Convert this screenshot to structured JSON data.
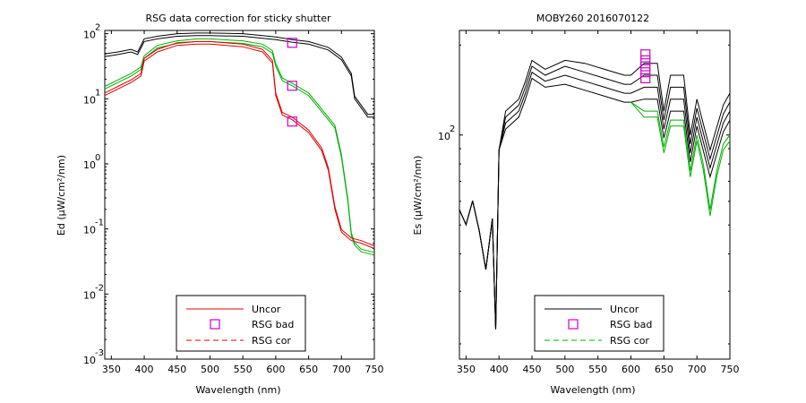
{
  "chart_data": [
    {
      "type": "line",
      "title": "RSG data correction for sticky shutter",
      "xlabel": "Wavelength (nm)",
      "ylabel": "Ed (µW/cm²/nm)",
      "xlim": [
        340,
        750
      ],
      "ylim_log10": [
        -3,
        2.05
      ],
      "yscale": "log",
      "xticks": [
        350,
        400,
        450,
        500,
        550,
        600,
        650,
        700,
        750
      ],
      "yticks": [
        {
          "value": 2,
          "base": "10",
          "exp": "2"
        },
        {
          "value": 1,
          "base": "10",
          "exp": "1"
        },
        {
          "value": 0,
          "base": "10",
          "exp": "0"
        },
        {
          "value": -1,
          "base": "10",
          "exp": "-1"
        },
        {
          "value": -2,
          "base": "10",
          "exp": "-2"
        },
        {
          "value": -3,
          "base": "10",
          "exp": "-3"
        }
      ],
      "legend": {
        "position": "bottom-center",
        "entries": [
          {
            "label": "Uncor",
            "style": "line",
            "color": "#e00000"
          },
          {
            "label": "RSG bad",
            "style": "square",
            "color": "#cc00cc"
          },
          {
            "label": "RSG cor",
            "style": "dashed",
            "color": "#e00000"
          }
        ]
      },
      "series": [
        {
          "color": "#000000",
          "x": [
            340,
            360,
            380,
            390,
            395,
            400,
            420,
            450,
            480,
            500,
            550,
            580,
            600,
            625,
            650,
            680,
            700,
            715,
            720,
            740,
            750
          ],
          "y_log10": [
            1.65,
            1.68,
            1.72,
            1.68,
            1.78,
            1.88,
            1.92,
            1.96,
            1.97,
            1.97,
            1.96,
            1.93,
            1.91,
            1.87,
            1.84,
            1.75,
            1.6,
            1.35,
            1.0,
            0.72,
            0.72
          ]
        },
        {
          "color": "#000000",
          "x": [
            340,
            360,
            380,
            390,
            395,
            400,
            420,
            450,
            480,
            500,
            550,
            580,
            600,
            625,
            650,
            680,
            700,
            715,
            720,
            740,
            750
          ],
          "y_log10": [
            1.69,
            1.72,
            1.76,
            1.72,
            1.82,
            1.92,
            1.96,
            2.0,
            2.01,
            2.01,
            2.0,
            1.97,
            1.95,
            1.91,
            1.88,
            1.79,
            1.64,
            1.39,
            1.04,
            0.76,
            0.76
          ]
        },
        {
          "color": "#00b000",
          "x": [
            340,
            360,
            380,
            395,
            400,
            420,
            450,
            480,
            500,
            550,
            580,
            595,
            600,
            610,
            625,
            650,
            670,
            690,
            700,
            710,
            715,
            720,
            730,
            750
          ],
          "y_log10": [
            1.15,
            1.25,
            1.35,
            1.45,
            1.62,
            1.78,
            1.85,
            1.88,
            1.88,
            1.85,
            1.8,
            1.7,
            1.5,
            1.28,
            1.2,
            1.05,
            0.8,
            0.55,
            0.1,
            -0.6,
            -1.1,
            -1.25,
            -1.35,
            -1.4
          ]
        },
        {
          "color": "#00b000",
          "x": [
            340,
            360,
            380,
            395,
            400,
            420,
            450,
            480,
            500,
            550,
            580,
            595,
            600,
            610,
            625,
            650,
            670,
            690,
            700,
            710,
            715,
            720,
            730,
            750
          ],
          "y_log10": [
            1.19,
            1.29,
            1.39,
            1.49,
            1.66,
            1.82,
            1.89,
            1.92,
            1.92,
            1.89,
            1.84,
            1.74,
            1.54,
            1.32,
            1.24,
            1.09,
            0.84,
            0.59,
            0.14,
            -0.56,
            -1.06,
            -1.21,
            -1.31,
            -1.36
          ]
        },
        {
          "color": "#e00000",
          "x": [
            340,
            360,
            380,
            395,
            400,
            420,
            450,
            480,
            500,
            550,
            580,
            595,
            600,
            610,
            625,
            650,
            670,
            680,
            690,
            700,
            715,
            730,
            750
          ],
          "y_log10": [
            1.05,
            1.15,
            1.25,
            1.35,
            1.58,
            1.72,
            1.82,
            1.84,
            1.84,
            1.8,
            1.72,
            1.55,
            1.05,
            0.75,
            0.68,
            0.48,
            0.2,
            -0.1,
            -0.7,
            -1.05,
            -1.18,
            -1.22,
            -1.3
          ]
        },
        {
          "color": "#e00000",
          "x": [
            340,
            360,
            380,
            395,
            400,
            420,
            450,
            480,
            500,
            550,
            580,
            595,
            600,
            610,
            625,
            650,
            670,
            680,
            690,
            700,
            715,
            730,
            750
          ],
          "y_log10": [
            1.09,
            1.19,
            1.29,
            1.39,
            1.62,
            1.76,
            1.86,
            1.88,
            1.88,
            1.84,
            1.76,
            1.59,
            1.09,
            0.79,
            0.72,
            0.52,
            0.24,
            -0.06,
            -0.66,
            -1.01,
            -1.14,
            -1.18,
            -1.26
          ]
        }
      ],
      "markers": {
        "color": "#cc00cc",
        "x": [
          625,
          625,
          625
        ],
        "y_log10": [
          1.86,
          1.2,
          0.65
        ]
      }
    },
    {
      "type": "line",
      "title": "MOBY260  2016070122",
      "xlabel": "Wavelength (nm)",
      "ylabel": "Es (µW/cm²/nm)",
      "xlim": [
        340,
        750
      ],
      "ylim_log10": [
        1.25,
        2.35
      ],
      "yscale": "log",
      "xticks": [
        350,
        400,
        450,
        500,
        550,
        600,
        650,
        700,
        750
      ],
      "yticks": [
        {
          "value": 2,
          "base": "10",
          "exp": "2"
        }
      ],
      "legend": {
        "position": "bottom-center",
        "entries": [
          {
            "label": "Uncor",
            "style": "line",
            "color": "#000000"
          },
          {
            "label": "RSG bad",
            "style": "square",
            "color": "#cc00cc"
          },
          {
            "label": "RSG cor",
            "style": "dashed",
            "color": "#00b000"
          }
        ]
      },
      "series": [
        {
          "color": "#000000",
          "x": [
            340,
            350,
            360,
            370,
            380,
            390,
            395,
            400,
            410,
            430,
            440,
            450,
            470,
            500,
            530,
            560,
            590,
            600,
            620,
            640,
            650,
            660,
            680,
            690,
            700,
            720,
            740,
            750
          ],
          "y_log10": [
            1.75,
            1.7,
            1.78,
            1.68,
            1.55,
            1.72,
            1.35,
            1.95,
            2.08,
            2.12,
            2.18,
            2.25,
            2.22,
            2.25,
            2.24,
            2.22,
            2.2,
            2.2,
            2.24,
            2.24,
            2.08,
            2.2,
            2.2,
            2.0,
            2.12,
            1.95,
            2.1,
            2.14
          ]
        },
        {
          "color": "#000000",
          "x": [
            340,
            350,
            360,
            370,
            380,
            390,
            395,
            400,
            410,
            430,
            440,
            450,
            470,
            500,
            530,
            560,
            590,
            600,
            620,
            640,
            650,
            660,
            680,
            690,
            700,
            720,
            740,
            750
          ],
          "y_log10": [
            1.75,
            1.7,
            1.78,
            1.68,
            1.55,
            1.72,
            1.35,
            1.95,
            2.06,
            2.1,
            2.16,
            2.23,
            2.2,
            2.23,
            2.21,
            2.19,
            2.17,
            2.17,
            2.2,
            2.2,
            2.05,
            2.16,
            2.16,
            1.97,
            2.09,
            1.92,
            2.07,
            2.11
          ]
        },
        {
          "color": "#000000",
          "x": [
            340,
            350,
            360,
            370,
            380,
            390,
            395,
            400,
            410,
            430,
            440,
            450,
            470,
            500,
            530,
            560,
            590,
            600,
            620,
            640,
            650,
            660,
            680,
            690,
            700,
            720,
            740,
            750
          ],
          "y_log10": [
            1.75,
            1.7,
            1.78,
            1.68,
            1.55,
            1.72,
            1.35,
            1.95,
            2.04,
            2.08,
            2.14,
            2.21,
            2.18,
            2.2,
            2.18,
            2.16,
            2.14,
            2.14,
            2.16,
            2.16,
            2.02,
            2.12,
            2.12,
            1.94,
            2.06,
            1.89,
            2.04,
            2.08
          ]
        },
        {
          "color": "#000000",
          "x": [
            340,
            350,
            360,
            370,
            380,
            390,
            395,
            400,
            410,
            430,
            440,
            450,
            470,
            500,
            530,
            560,
            590,
            600,
            620,
            640,
            650,
            660,
            680,
            690,
            700,
            720,
            740,
            750
          ],
          "y_log10": [
            1.75,
            1.7,
            1.78,
            1.68,
            1.55,
            1.72,
            1.35,
            1.95,
            2.02,
            2.06,
            2.12,
            2.19,
            2.16,
            2.17,
            2.15,
            2.13,
            2.11,
            2.11,
            2.12,
            2.12,
            1.99,
            2.08,
            2.08,
            1.91,
            2.03,
            1.86,
            2.01,
            2.05
          ]
        },
        {
          "color": "#00b000",
          "x": [
            600,
            620,
            640,
            650,
            660,
            680,
            690,
            700,
            710,
            720,
            730,
            740,
            750
          ],
          "y_log10": [
            2.11,
            2.08,
            2.08,
            1.96,
            2.05,
            2.05,
            1.88,
            2.0,
            1.9,
            1.75,
            1.88,
            1.97,
            2.0
          ]
        },
        {
          "color": "#00b000",
          "x": [
            600,
            620,
            640,
            650,
            660,
            680,
            690,
            700,
            710,
            720,
            730,
            740,
            750
          ],
          "y_log10": [
            2.11,
            2.06,
            2.06,
            1.94,
            2.03,
            2.03,
            1.86,
            1.98,
            1.88,
            1.73,
            1.86,
            1.95,
            1.98
          ]
        }
      ],
      "markers": {
        "color": "#cc00cc",
        "x": [
          622,
          622,
          622,
          622,
          622
        ],
        "y_log10": [
          2.27,
          2.25,
          2.23,
          2.21,
          2.19
        ]
      }
    }
  ]
}
